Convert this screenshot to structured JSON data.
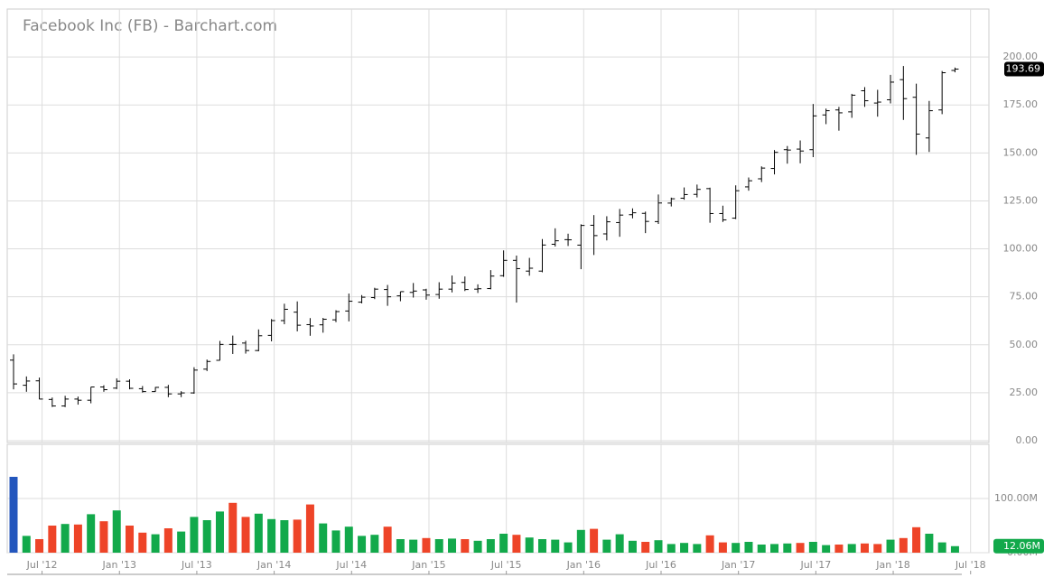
{
  "chart_data": {
    "type": "ohlc",
    "title": "Facebook Inc (FB) - Barchart.com",
    "categories": [
      null,
      null,
      "Jul '12",
      null,
      null,
      null,
      null,
      null,
      "Jan '13",
      null,
      null,
      null,
      null,
      null,
      "Jul '13",
      null,
      null,
      null,
      null,
      null,
      "Jan '14",
      null,
      null,
      null,
      null,
      null,
      "Jul '14",
      null,
      null,
      null,
      null,
      null,
      "Jan '15",
      null,
      null,
      null,
      null,
      null,
      "Jul '15",
      null,
      null,
      null,
      null,
      null,
      "Jan '16",
      null,
      null,
      null,
      null,
      null,
      "Jul '16",
      null,
      null,
      null,
      null,
      null,
      "Jan '17",
      null,
      null,
      null,
      null,
      null,
      "Jul '17",
      null,
      null,
      null,
      null,
      null,
      "Jan '18",
      null,
      null,
      null,
      null,
      null,
      "Jul '18"
    ],
    "open": [
      42,
      28.9,
      31.2,
      21.5,
      18.1,
      21.7,
      21.1,
      28.0,
      27.4,
      31.0,
      27.1,
      25.6,
      27.8,
      24.4,
      24.9,
      37.3,
      41.9,
      50.2,
      50.9,
      47.0,
      54.9,
      62.6,
      67.0,
      60.5,
      60.4,
      63.0,
      67.6,
      72.2,
      74.6,
      78.8,
      75.5,
      77.3,
      78.6,
      76.2,
      79.0,
      82.5,
      79.0,
      79.3,
      86.0,
      94.0,
      88.4,
      88.4,
      102.4,
      104.8,
      101.95,
      112.3,
      107.8,
      113.7,
      117.8,
      118.5,
      114.2,
      123.85,
      126.4,
      128.4,
      131.4,
      118.4,
      116.0,
      132.3,
      136.5,
      141.9,
      151.7,
      152.0,
      151.7,
      169.8,
      172.4,
      171.4,
      182.4,
      176.0,
      177.7,
      188.2,
      179.0,
      157.8,
      172.4,
      193.0,
      null
    ],
    "high": [
      45,
      33.5,
      32.9,
      22.5,
      23.4,
      23.0,
      28.0,
      28.9,
      32.5,
      32.0,
      28.5,
      28.0,
      29.1,
      25.8,
      38.3,
      42.3,
      52.0,
      54.8,
      52.1,
      58.0,
      63.4,
      71.4,
      72.6,
      63.9,
      64.0,
      68.0,
      76.7,
      75.9,
      79.7,
      81.2,
      77.7,
      82.2,
      79.2,
      82.6,
      86.1,
      85.6,
      81.5,
      88.9,
      99.2,
      96.5,
      95.3,
      105.1,
      110.7,
      107.9,
      112.8,
      117.6,
      117.0,
      120.8,
      121.1,
      119.4,
      128.3,
      126.7,
      132.0,
      133.5,
      131.9,
      122.5,
      133.1,
      137.2,
      143.0,
      151.5,
      153.6,
      156.5,
      175.5,
      173.1,
      174.0,
      180.8,
      184.3,
      182.9,
      190.7,
      195.3,
      186.1,
      177.1,
      192.7,
      194.5,
      null
    ],
    "low": [
      26.8,
      25.5,
      21.6,
      17.6,
      17.5,
      18.8,
      19.5,
      25.5,
      26.9,
      26.8,
      25.1,
      25.5,
      22.7,
      22.7,
      24.5,
      36.3,
      41.8,
      45.2,
      45.4,
      46.6,
      51.8,
      60.7,
      57.0,
      54.7,
      56.3,
      61.8,
      62.2,
      71.6,
      73.8,
      70.3,
      72.7,
      74.6,
      73.5,
      74.0,
      77.3,
      78.0,
      77.0,
      78.9,
      85.4,
      72.0,
      86.0,
      87.8,
      101.2,
      101.5,
      89.4,
      96.8,
      104.4,
      106.3,
      115.9,
      108.2,
      113.0,
      122.1,
      125.6,
      126.8,
      113.6,
      114.0,
      115.5,
      130.3,
      134.8,
      138.8,
      144.4,
      144.6,
      147.8,
      165.0,
      161.6,
      168.3,
      174.0,
      168.9,
      175.8,
      167.2,
      149.0,
      150.5,
      170.2,
      192.0,
      null
    ],
    "close": [
      29.6,
      31.1,
      21.7,
      18.1,
      21.7,
      21.1,
      28.0,
      26.6,
      31.0,
      27.3,
      25.6,
      27.8,
      24.4,
      24.9,
      36.8,
      41.3,
      50.2,
      50.2,
      47.0,
      54.7,
      62.6,
      68.5,
      60.2,
      59.8,
      63.3,
      67.3,
      72.7,
      74.8,
      79.0,
      75.0,
      77.7,
      78.0,
      75.9,
      79.0,
      82.2,
      78.8,
      79.2,
      85.8,
      94.0,
      89.7,
      89.9,
      102.0,
      104.2,
      104.7,
      112.2,
      106.9,
      114.1,
      117.6,
      118.8,
      114.3,
      123.9,
      126.1,
      128.3,
      131.0,
      118.4,
      115.1,
      130.3,
      135.5,
      142.1,
      150.3,
      151.5,
      151.0,
      169.3,
      172.0,
      170.9,
      180.1,
      177.2,
      176.5,
      186.9,
      178.3,
      159.8,
      172.0,
      191.8,
      193.69,
      null
    ],
    "color": "#000000",
    "ylim": [
      0,
      225
    ],
    "yticks": [
      {
        "value": 0,
        "label": "0.00"
      },
      {
        "value": 25,
        "label": "25.00"
      },
      {
        "value": 50,
        "label": "50.00"
      },
      {
        "value": 75,
        "label": "75.00"
      },
      {
        "value": 100,
        "label": "100.00"
      },
      {
        "value": 125,
        "label": "125.00"
      },
      {
        "value": 150,
        "label": "150.00"
      },
      {
        "value": 175,
        "label": "175.00"
      },
      {
        "value": 200,
        "label": "200.00"
      }
    ],
    "last_price": 193.69,
    "grid": true,
    "volume": {
      "values": [
        140,
        31,
        25,
        50,
        53,
        52,
        71,
        58,
        78,
        50,
        37,
        34,
        45,
        39,
        66,
        60,
        76,
        92,
        66,
        72,
        62,
        60,
        61,
        89,
        54,
        41,
        48,
        31,
        33,
        48,
        25,
        24,
        27,
        25,
        26,
        25,
        22,
        25,
        35,
        33,
        28,
        25,
        24,
        19,
        42,
        44,
        24,
        34,
        22,
        20,
        23,
        16,
        18,
        16,
        32,
        19,
        18,
        20,
        15,
        16,
        17,
        18,
        20,
        14,
        15,
        16,
        17,
        16,
        24,
        27,
        47,
        35,
        19,
        12.06,
        null
      ],
      "colors": [
        "#2356bd",
        "#12a94b",
        "#ee4428",
        "#ee4428",
        "#12a94b",
        "#ee4428",
        "#12a94b",
        "#ee4428",
        "#12a94b",
        "#ee4428",
        "#ee4428",
        "#12a94b",
        "#ee4428",
        "#12a94b",
        "#12a94b",
        "#12a94b",
        "#12a94b",
        "#ee4428",
        "#ee4428",
        "#12a94b",
        "#12a94b",
        "#12a94b",
        "#ee4428",
        "#ee4428",
        "#12a94b",
        "#12a94b",
        "#12a94b",
        "#12a94b",
        "#12a94b",
        "#ee4428",
        "#12a94b",
        "#12a94b",
        "#ee4428",
        "#12a94b",
        "#12a94b",
        "#ee4428",
        "#12a94b",
        "#12a94b",
        "#12a94b",
        "#ee4428",
        "#12a94b",
        "#12a94b",
        "#12a94b",
        "#12a94b",
        "#12a94b",
        "#ee4428",
        "#12a94b",
        "#12a94b",
        "#12a94b",
        "#ee4428",
        "#12a94b",
        "#12a94b",
        "#12a94b",
        "#12a94b",
        "#ee4428",
        "#ee4428",
        "#12a94b",
        "#12a94b",
        "#12a94b",
        "#12a94b",
        "#12a94b",
        "#ee4428",
        "#12a94b",
        "#12a94b",
        "#ee4428",
        "#12a94b",
        "#ee4428",
        "#ee4428",
        "#12a94b",
        "#ee4428",
        "#ee4428",
        "#12a94b",
        "#12a94b",
        "#12a94b",
        null
      ],
      "ylim": [
        0,
        200
      ],
      "yticks": [
        {
          "value": 0,
          "label": "0.00M"
        },
        {
          "value": 100,
          "label": "100.00M"
        }
      ],
      "last": {
        "value": 12.06,
        "label": "12.06M"
      }
    }
  }
}
